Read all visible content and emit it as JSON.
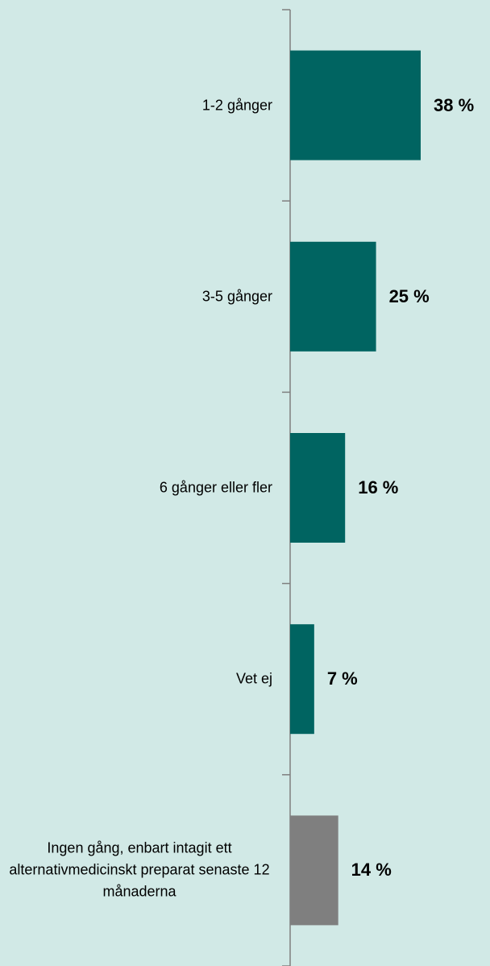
{
  "chart_data": {
    "type": "barh",
    "categories": [
      "1-2 gånger",
      "3-5 gånger",
      "6 gånger eller fler",
      "Vet ej",
      "Ingen gång, enbart intagit ett alternativmedicinskt preparat senaste 12 månaderna"
    ],
    "values": [
      38,
      25,
      16,
      7,
      14
    ],
    "value_labels": [
      "38 %",
      "25 %",
      "16 %",
      "7 %",
      "14 %"
    ],
    "colors": [
      "#006461",
      "#006461",
      "#006461",
      "#006461",
      "#7f7f7f"
    ]
  }
}
